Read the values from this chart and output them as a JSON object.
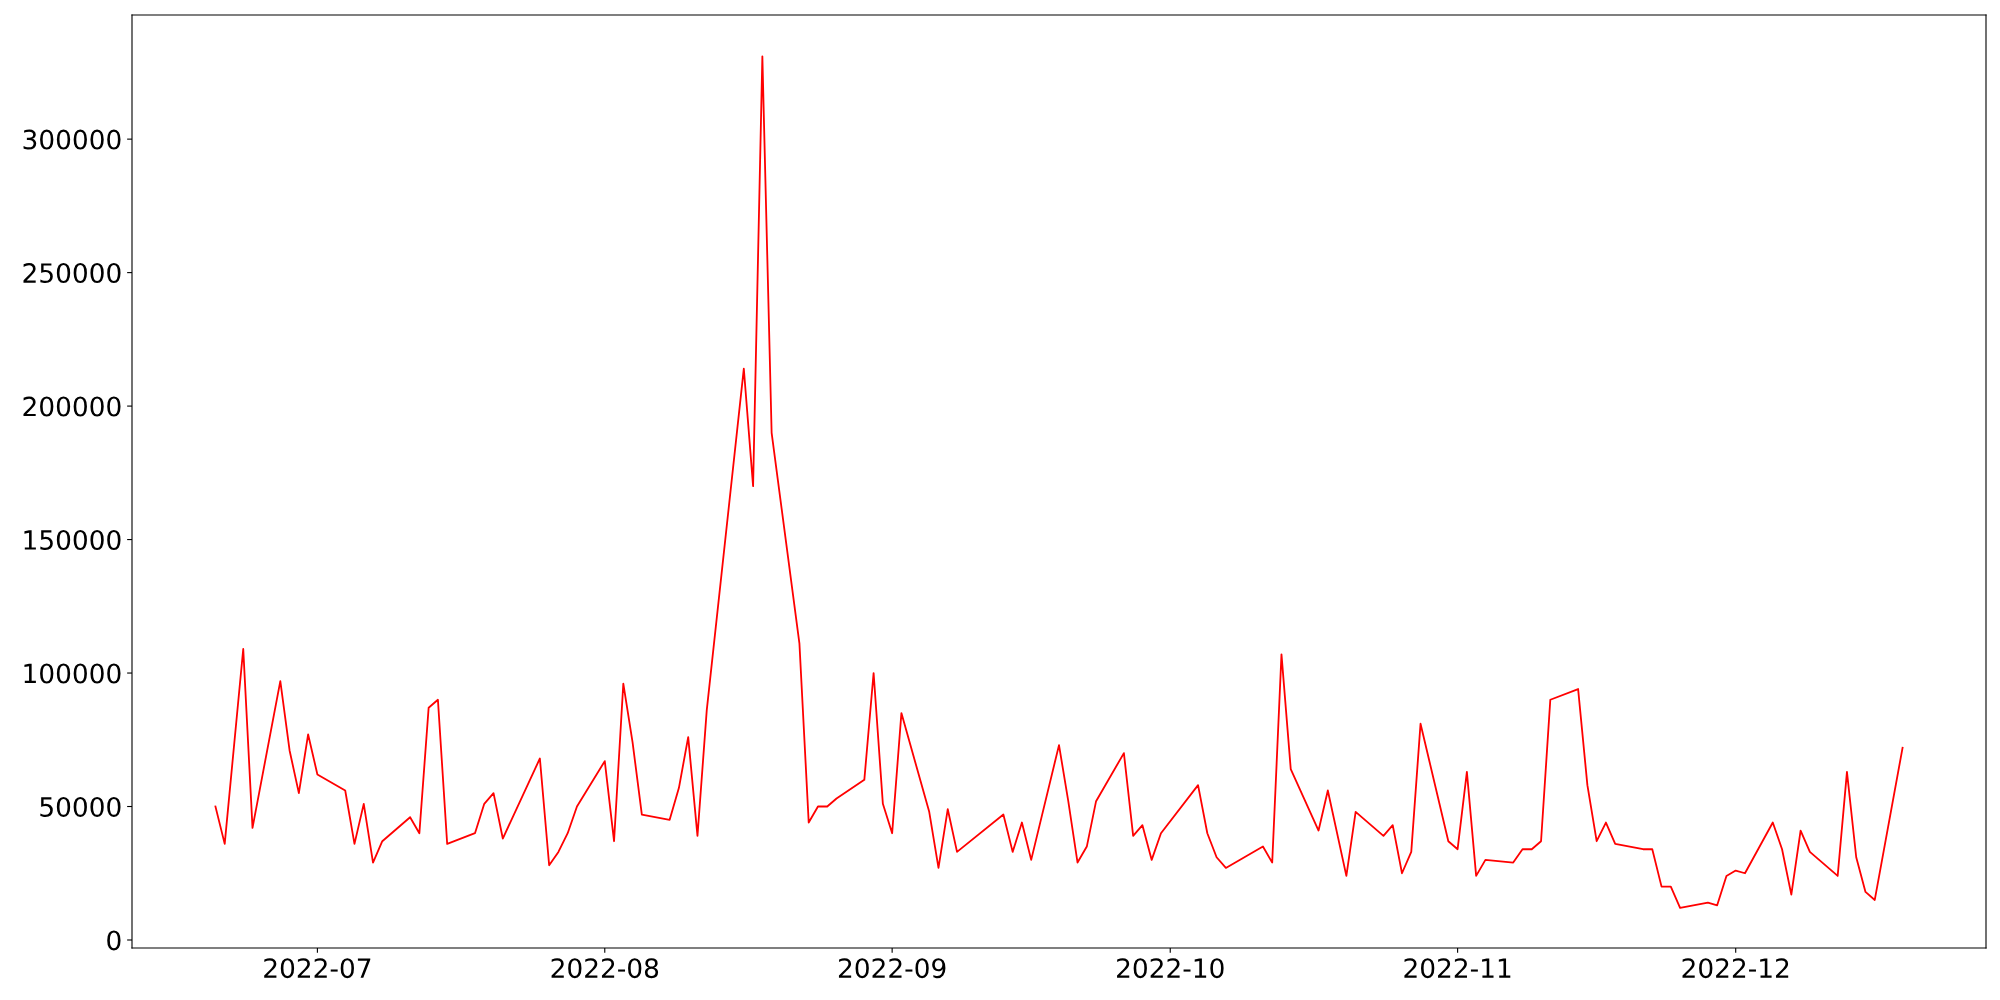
{
  "chart_data": {
    "type": "line",
    "x": [
      "2022-06-20",
      "2022-06-21",
      "2022-06-23",
      "2022-06-24",
      "2022-06-27",
      "2022-06-28",
      "2022-06-29",
      "2022-06-30",
      "2022-07-01",
      "2022-07-04",
      "2022-07-05",
      "2022-07-06",
      "2022-07-07",
      "2022-07-08",
      "2022-07-11",
      "2022-07-12",
      "2022-07-13",
      "2022-07-14",
      "2022-07-15",
      "2022-07-18",
      "2022-07-19",
      "2022-07-20",
      "2022-07-21",
      "2022-07-25",
      "2022-07-26",
      "2022-07-27",
      "2022-07-28",
      "2022-07-29",
      "2022-08-01",
      "2022-08-02",
      "2022-08-03",
      "2022-08-04",
      "2022-08-05",
      "2022-08-08",
      "2022-08-09",
      "2022-08-10",
      "2022-08-11",
      "2022-08-12",
      "2022-08-16",
      "2022-08-17",
      "2022-08-18",
      "2022-08-19",
      "2022-08-22",
      "2022-08-23",
      "2022-08-24",
      "2022-08-25",
      "2022-08-26",
      "2022-08-29",
      "2022-08-30",
      "2022-08-31",
      "2022-09-01",
      "2022-09-02",
      "2022-09-05",
      "2022-09-06",
      "2022-09-07",
      "2022-09-08",
      "2022-09-13",
      "2022-09-14",
      "2022-09-15",
      "2022-09-16",
      "2022-09-19",
      "2022-09-20",
      "2022-09-21",
      "2022-09-22",
      "2022-09-23",
      "2022-09-26",
      "2022-09-27",
      "2022-09-28",
      "2022-09-29",
      "2022-09-30",
      "2022-10-04",
      "2022-10-05",
      "2022-10-06",
      "2022-10-07",
      "2022-10-11",
      "2022-10-12",
      "2022-10-13",
      "2022-10-14",
      "2022-10-17",
      "2022-10-18",
      "2022-10-20",
      "2022-10-21",
      "2022-10-24",
      "2022-10-25",
      "2022-10-26",
      "2022-10-27",
      "2022-10-28",
      "2022-10-31",
      "2022-11-01",
      "2022-11-02",
      "2022-11-03",
      "2022-11-04",
      "2022-11-07",
      "2022-11-08",
      "2022-11-09",
      "2022-11-10",
      "2022-11-11",
      "2022-11-14",
      "2022-11-15",
      "2022-11-16",
      "2022-11-17",
      "2022-11-18",
      "2022-11-21",
      "2022-11-22",
      "2022-11-23",
      "2022-11-24",
      "2022-11-25",
      "2022-11-28",
      "2022-11-29",
      "2022-11-30",
      "2022-12-01",
      "2022-12-02",
      "2022-12-05",
      "2022-12-06",
      "2022-12-07",
      "2022-12-08",
      "2022-12-09",
      "2022-12-12",
      "2022-12-13",
      "2022-12-14",
      "2022-12-15",
      "2022-12-16",
      "2022-12-19"
    ],
    "series": [
      {
        "color": "#ff0000",
        "values": [
          50000,
          36000,
          109000,
          42000,
          97000,
          71000,
          55000,
          77000,
          62000,
          56000,
          36000,
          51000,
          29000,
          37000,
          46000,
          40000,
          87000,
          90000,
          36000,
          40000,
          51000,
          55000,
          38000,
          68000,
          28000,
          33000,
          40000,
          50000,
          67000,
          37000,
          96000,
          74000,
          47000,
          45000,
          57000,
          76000,
          39000,
          86000,
          214000,
          170000,
          331000,
          190000,
          111000,
          44000,
          50000,
          50000,
          53000,
          60000,
          100000,
          51000,
          40000,
          85000,
          48000,
          27000,
          49000,
          33000,
          47000,
          33000,
          44000,
          30000,
          73000,
          52000,
          29000,
          35000,
          52000,
          70000,
          39000,
          43000,
          30000,
          40000,
          58000,
          40000,
          31000,
          27000,
          35000,
          29000,
          107000,
          64000,
          41000,
          56000,
          24000,
          48000,
          39000,
          43000,
          25000,
          33000,
          81000,
          37000,
          34000,
          63000,
          24000,
          30000,
          29000,
          34000,
          34000,
          37000,
          90000,
          94000,
          58000,
          37000,
          44000,
          36000,
          34000,
          34000,
          20000,
          20000,
          12000,
          14000,
          13000,
          24000,
          26000,
          25000,
          44000,
          34000,
          17000,
          41000,
          33000,
          24000,
          63000,
          31000,
          18000,
          15000,
          72000
        ]
      }
    ],
    "xlim": [
      "2022-06-11",
      "2022-12-28"
    ],
    "xticks": [
      "2022-07",
      "2022-08",
      "2022-09",
      "2022-10",
      "2022-11",
      "2022-12"
    ],
    "ylim": [
      -3000,
      346500
    ],
    "yticks": [
      0,
      50000,
      100000,
      150000,
      200000,
      250000,
      300000
    ],
    "grid": false,
    "legend": false
  }
}
